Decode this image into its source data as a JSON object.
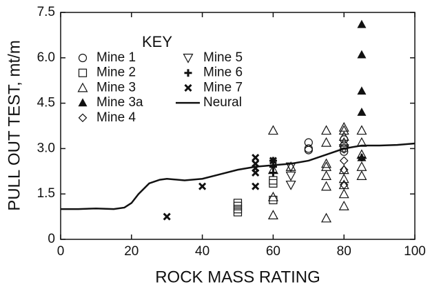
{
  "chart_data": {
    "type": "scatter",
    "legend_title": "KEY",
    "xlabel": "ROCK MASS RATING",
    "ylabel": "PULL OUT TEST, mt/m",
    "xlim": [
      0,
      100
    ],
    "xticks": [
      0,
      20,
      40,
      60,
      80,
      100
    ],
    "ylim": [
      0,
      7.5
    ],
    "yticks": [
      0,
      1.5,
      {
        "value": 3,
        "label": "3.0"
      },
      4.5,
      {
        "value": 6,
        "label": "6.0"
      },
      7.5
    ],
    "color": "#111111",
    "series": [
      {
        "name": "Mine 1",
        "marker": "circle",
        "x": [
          70,
          70,
          70,
          80,
          80,
          80,
          80
        ],
        "values": [
          3.2,
          3.0,
          2.95,
          3.3,
          3.1,
          3.0,
          2.9
        ]
      },
      {
        "name": "Mine 2",
        "marker": "square",
        "x": [
          50,
          50,
          50,
          50,
          60,
          60,
          60
        ],
        "values": [
          0.9,
          1.0,
          1.1,
          1.2,
          1.3,
          1.85,
          1.95
        ]
      },
      {
        "name": "Mine 3",
        "marker": "triangle",
        "x": [
          60,
          60,
          60,
          60,
          65,
          75,
          75,
          75,
          75,
          75,
          75,
          75,
          80,
          80,
          80,
          80,
          80,
          80,
          80,
          80,
          80,
          85,
          85,
          85,
          85,
          85
        ],
        "values": [
          3.6,
          0.8,
          1.4,
          2.3,
          2.4,
          3.6,
          3.2,
          2.5,
          2.4,
          2.1,
          1.75,
          0.7,
          3.7,
          3.6,
          3.4,
          3.2,
          2.3,
          2.0,
          1.8,
          1.5,
          1.1,
          3.6,
          3.2,
          2.8,
          2.4,
          2.1
        ]
      },
      {
        "name": "Mine 3a",
        "marker": "filled-triangle",
        "x": [
          85,
          85,
          85,
          85,
          85
        ],
        "values": [
          7.1,
          6.1,
          4.9,
          4.2,
          2.7
        ]
      },
      {
        "name": "Mine 4",
        "marker": "diamond",
        "x": [
          80,
          80,
          80
        ],
        "values": [
          2.6,
          2.3,
          1.8
        ]
      },
      {
        "name": "Mine 5",
        "marker": "inverted-triangle",
        "x": [
          65,
          65,
          65,
          80
        ],
        "values": [
          2.4,
          2.1,
          1.8,
          3.0
        ]
      },
      {
        "name": "Mine 6",
        "marker": "plus",
        "x": [
          60,
          60,
          60,
          85
        ],
        "values": [
          2.6,
          2.4,
          2.2,
          2.7
        ]
      },
      {
        "name": "Mine 7",
        "marker": "x",
        "x": [
          30,
          40,
          55,
          55,
          55,
          55,
          55,
          60
        ],
        "values": [
          0.75,
          1.75,
          2.7,
          2.5,
          2.35,
          2.2,
          1.75,
          2.6
        ]
      },
      {
        "name": "Neural",
        "marker": "line",
        "x": [
          0,
          5,
          10,
          15,
          18,
          20,
          22,
          25,
          28,
          30,
          35,
          40,
          45,
          50,
          55,
          60,
          65,
          70,
          75,
          80,
          85,
          90,
          95,
          100
        ],
        "values": [
          1.0,
          1.0,
          1.02,
          1.0,
          1.05,
          1.2,
          1.5,
          1.85,
          1.97,
          2.0,
          1.95,
          2.0,
          2.15,
          2.3,
          2.4,
          2.45,
          2.5,
          2.6,
          2.8,
          3.0,
          3.1,
          3.1,
          3.12,
          3.17
        ]
      }
    ]
  }
}
